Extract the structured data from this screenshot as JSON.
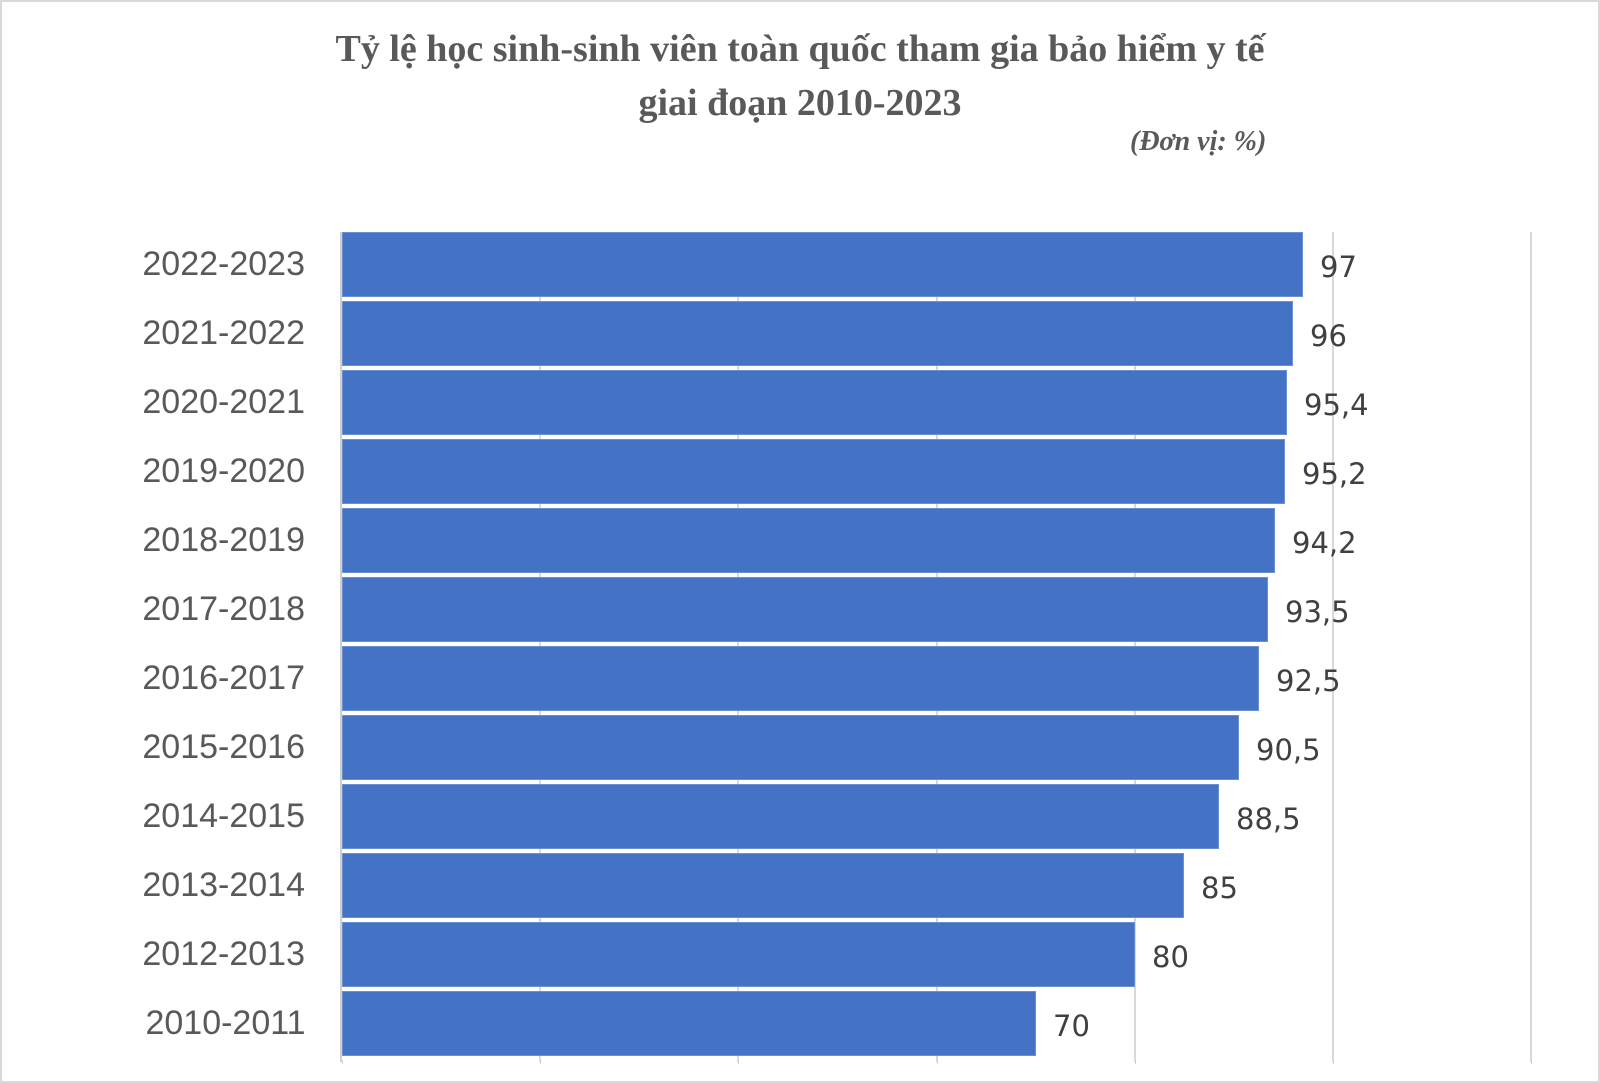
{
  "chart_data": {
    "type": "bar",
    "orientation": "horizontal",
    "title": "Tỷ lệ học sinh-sinh viên toàn quốc tham gia bảo hiểm y tế giai đoạn 2010-2023",
    "title_lines": [
      "Tỷ lệ học sinh-sinh viên toàn quốc tham gia bảo hiểm y tế",
      "giai đoạn 2010-2023"
    ],
    "subtitle": "(Đơn vị: %)",
    "xlabel": "",
    "ylabel": "",
    "xlim": [
      0,
      120
    ],
    "grid_step": 20,
    "grid": true,
    "legend": null,
    "bar_color": "#4472C4",
    "categories": [
      "2022-2023",
      "2021-2022",
      "2020-2021",
      "2019-2020",
      "2018-2019",
      "2017-2018",
      "2016-2017",
      "2015-2016",
      "2014-2015",
      "2013-2014",
      "2012-2013",
      "2010-2011 "
    ],
    "values": [
      97,
      96,
      95.4,
      95.2,
      94.2,
      93.5,
      92.5,
      90.5,
      88.5,
      85,
      80,
      70
    ],
    "value_labels": [
      "97",
      "96",
      "95,4",
      "95,2",
      "94,2",
      "93,5",
      "92,5",
      "90,5",
      "88,5",
      "85",
      "80",
      "70"
    ]
  }
}
